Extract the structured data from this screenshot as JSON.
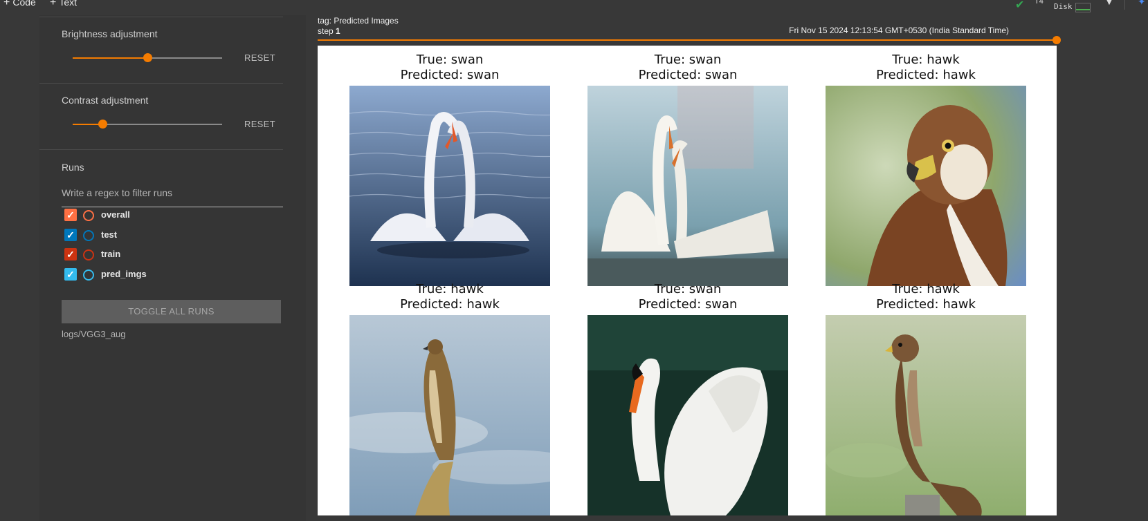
{
  "topbar": {
    "code_label": "Code",
    "text_label": "Text",
    "ram_label": "T4",
    "disk_label": "Disk",
    "icons": [
      "check-icon",
      "chevron-down-icon",
      "sparkle-icon"
    ],
    "status_color": "#34a853"
  },
  "sidebar": {
    "brightness": {
      "title": "Brightness adjustment",
      "value": 0.5,
      "reset_label": "RESET"
    },
    "contrast": {
      "title": "Contrast adjustment",
      "value": 0.2,
      "reset_label": "RESET"
    },
    "runs": {
      "title": "Runs",
      "filter_placeholder": "Write a regex to filter runs",
      "items": [
        {
          "label": "overall",
          "color": "#ff7043",
          "checked": true
        },
        {
          "label": "test",
          "color": "#0077bb",
          "checked": true
        },
        {
          "label": "train",
          "color": "#cc3311",
          "checked": true
        },
        {
          "label": "pred_imgs",
          "color": "#33bbee",
          "checked": true
        }
      ],
      "toggle_label": "TOGGLE ALL RUNS",
      "logdir": "logs/VGG3_aug"
    },
    "accent_color": "#f57c00"
  },
  "main": {
    "tag_label": "tag: Predicted Images",
    "step_prefix": "step",
    "step_value": "1",
    "timestamp": "Fri Nov 15 2024 12:13:54 GMT+0530 (India Standard Time)",
    "images": [
      {
        "true_label": "True: swan",
        "pred_label": "Predicted: swan",
        "subject": "two-swans-heart"
      },
      {
        "true_label": "True: swan",
        "pred_label": "Predicted: swan",
        "subject": "two-white-swans"
      },
      {
        "true_label": "True: hawk",
        "pred_label": "Predicted: hawk",
        "subject": "hawk-portrait"
      },
      {
        "true_label": "True: hawk",
        "pred_label": "Predicted: hawk",
        "subject": "hawk-perched-sky"
      },
      {
        "true_label": "True: swan",
        "pred_label": "Predicted: swan",
        "subject": "swan-dark-water"
      },
      {
        "true_label": "True: hawk",
        "pred_label": "Predicted: hawk",
        "subject": "hawk-on-post"
      }
    ]
  }
}
